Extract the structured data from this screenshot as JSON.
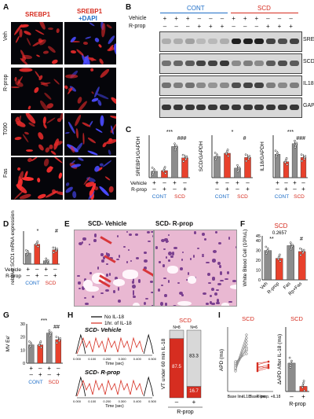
{
  "panelA": {
    "letter": "A",
    "col_headers": [
      "SREBP1",
      "SREBP1",
      "+DAPI"
    ],
    "rows": [
      "Veh",
      "R-prop",
      "T090",
      "Fas"
    ]
  },
  "panelB": {
    "letter": "B",
    "group_cont": "CONT",
    "group_scd": "SCD",
    "treat_labels": [
      "Vehicle",
      "R-prop"
    ],
    "vehicle_signs": [
      "+",
      "+",
      "+",
      "–",
      "–",
      "–",
      "+",
      "+",
      "+",
      "–",
      "–",
      "–"
    ],
    "rprop_signs": [
      "–",
      "–",
      "–",
      "+",
      "+",
      "+",
      "–",
      "–",
      "–",
      "+",
      "+",
      "+"
    ],
    "blots": [
      "SREBP1-c",
      "SCD",
      "IL18",
      "GAPDH"
    ]
  },
  "panelC": {
    "letter": "C",
    "ylabels": [
      "SREBP1/GAPDH",
      "SCD/GAPDH",
      "IL18/GAPDH"
    ],
    "sig": [
      "***",
      "###",
      "*",
      "#",
      "***",
      "###"
    ],
    "rows": [
      "Vehicle",
      "R-prop"
    ],
    "vehicle_signs": [
      "+",
      "–",
      "+",
      "–"
    ],
    "rprop_signs": [
      "–",
      "+",
      "–",
      "+"
    ],
    "groups": [
      "CONT",
      "SCD"
    ]
  },
  "panelD": {
    "letter": "D",
    "ylabel": "relative SCD1 mRNA expression",
    "sig": [
      "*",
      "#"
    ],
    "rows": [
      "Vehicle",
      "R-prop"
    ],
    "vehicle_signs": [
      "+",
      "–",
      "+",
      "–"
    ],
    "rprop_signs": [
      "–",
      "+",
      "–",
      "+"
    ],
    "groups": [
      "CONT",
      "SCD"
    ]
  },
  "panelE": {
    "letter": "E",
    "titles": [
      "SCD- Vehicle",
      "SCD- R-prop"
    ]
  },
  "panelF": {
    "letter": "F",
    "title": "SCD",
    "ylabel": "White Blood Cell (10³/uL)",
    "pvalue": "0.2657",
    "sig": [
      "**",
      "#"
    ],
    "categories": [
      "Veh",
      "R-prop",
      "Fas",
      "Rp+Fas"
    ],
    "yticks": [
      "0",
      "5",
      "10",
      "15",
      "20",
      "25",
      "30",
      "35",
      "40",
      "45"
    ]
  },
  "panelG": {
    "letter": "G",
    "ylabel": "MV Ee'",
    "sig": [
      "***",
      "##"
    ],
    "yticks": [
      "0",
      "5",
      "10",
      "15",
      "20",
      "25",
      "30"
    ],
    "vehicle_signs": [
      "+",
      "–",
      "+",
      "–"
    ],
    "rprop_signs": [
      "–",
      "+",
      "–",
      "+"
    ],
    "groups": [
      "CONT",
      "SCD"
    ]
  },
  "panelH": {
    "letter": "H",
    "legend": [
      "No IL-18",
      "1hr. of IL-18"
    ],
    "titles": [
      "SCD- Vehicle",
      "SCD- R-prop"
    ],
    "xlabel": "Time (sec)",
    "xticks": [
      "0.000",
      "0.100",
      "0.200",
      "0.300",
      "0.400",
      "0.500"
    ],
    "bar_title": "SCD",
    "bar_ylabel": "VT under 60 min IL-18",
    "n_labels": [
      "N=8",
      "N=6"
    ],
    "bar_values": [
      "87.5",
      "16.7",
      "83.3"
    ],
    "bar_x": [
      "–",
      "+"
    ],
    "bar_xlabel": "R-prop"
  },
  "panelI": {
    "letter": "I",
    "title": "SCD",
    "ylabel": "APD (ms)",
    "xlabels": [
      "Base line",
      "IL18",
      "Base line",
      "R-prop. +IL18"
    ],
    "bar_title": "SCD",
    "bar_ylabel": "ΔAPD After IL-18 (ms)",
    "bar_x": [
      "–",
      "+"
    ],
    "bar_xlabel": "R-prop"
  },
  "colors": {
    "control": "#8c8c8c",
    "rprop": "#e8412c",
    "scd_vehicle": "#8c8c8c",
    "accent_red": "#d62d20",
    "accent_blue": "#1f6fc8"
  },
  "chart_data": [
    {
      "type": "bar",
      "panel": "C-left",
      "categories": [
        "CONT Vehicle",
        "CONT R-prop",
        "SCD Vehicle",
        "SCD R-prop"
      ],
      "values": [
        0.9,
        1.0,
        4.4,
        2.8
      ],
      "ylabel": "SREBP1/GAPDH",
      "ylim": [
        0,
        6
      ]
    },
    {
      "type": "bar",
      "panel": "C-middle",
      "categories": [
        "CONT Vehicle",
        "CONT R-prop",
        "SCD Vehicle",
        "SCD R-prop"
      ],
      "values": [
        1.0,
        1.15,
        0.45,
        0.95
      ],
      "ylabel": "SCD/GAPDH",
      "ylim": [
        0,
        2
      ]
    },
    {
      "type": "bar",
      "panel": "C-right",
      "categories": [
        "CONT Vehicle",
        "CONT R-prop",
        "SCD Vehicle",
        "SCD R-prop"
      ],
      "values": [
        1.1,
        0.75,
        1.6,
        0.95
      ],
      "ylabel": "IL18/GAPDH",
      "ylim": [
        0,
        2
      ]
    },
    {
      "type": "bar",
      "panel": "D",
      "categories": [
        "CONT Vehicle",
        "CONT R-prop",
        "SCD Vehicle",
        "SCD R-prop"
      ],
      "values": [
        1.0,
        1.8,
        0.3,
        1.3
      ],
      "ylabel": "relative SCD1 mRNA expression",
      "ylim": [
        0,
        3
      ]
    },
    {
      "type": "bar",
      "panel": "F",
      "categories": [
        "Veh",
        "R-prop",
        "Fas",
        "Rp+Fas"
      ],
      "values": [
        30,
        22,
        35,
        29
      ],
      "ylabel": "White Blood Cell (10³/uL)",
      "ylim": [
        0,
        45
      ]
    },
    {
      "type": "bar",
      "panel": "G",
      "categories": [
        "CONT Vehicle",
        "CONT R-prop",
        "SCD Vehicle",
        "SCD R-prop"
      ],
      "values": [
        14,
        14,
        23,
        18
      ],
      "ylabel": "MV Ee'",
      "ylim": [
        0,
        30
      ]
    },
    {
      "type": "bar",
      "panel": "H-bar",
      "categories": [
        "R-prop –",
        "R-prop +"
      ],
      "series": [
        {
          "name": "VT",
          "values": [
            87.5,
            16.7
          ]
        },
        {
          "name": "no VT",
          "values": [
            12.5,
            83.3
          ]
        }
      ],
      "ylim": [
        0,
        100
      ]
    },
    {
      "type": "bar",
      "panel": "I-bar",
      "categories": [
        "R-prop –",
        "R-prop +"
      ],
      "values": [
        22,
        4
      ],
      "ylabel": "ΔAPD After IL-18 (ms)",
      "ylim": [
        0,
        50
      ]
    }
  ]
}
